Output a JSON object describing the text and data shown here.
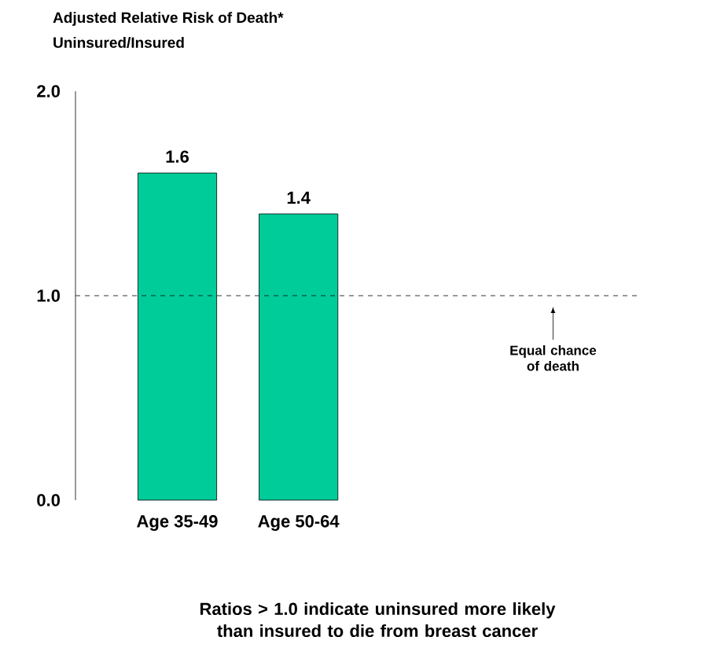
{
  "chart_data": {
    "type": "bar",
    "title": "Adjusted Relative Risk of Death*",
    "subtitle": "Uninsured/Insured",
    "categories": [
      "Age 35-49",
      "Age 50-64"
    ],
    "values": [
      1.6,
      1.4
    ],
    "color": "#00cc99",
    "ylim": [
      0,
      2
    ],
    "yticks": [
      {
        "value": 0,
        "label": "0.0"
      },
      {
        "value": 1,
        "label": "1.0"
      },
      {
        "value": 2,
        "label": "2.0"
      }
    ],
    "data_labels": true,
    "ref_lines": [
      {
        "axis": "y",
        "value": 1,
        "line_style": "dashed"
      }
    ],
    "annotations": [
      "Equal chance of death",
      "Ratios > 1.0 indicate uninsured more likely than insured to die from breast cancer"
    ]
  }
}
